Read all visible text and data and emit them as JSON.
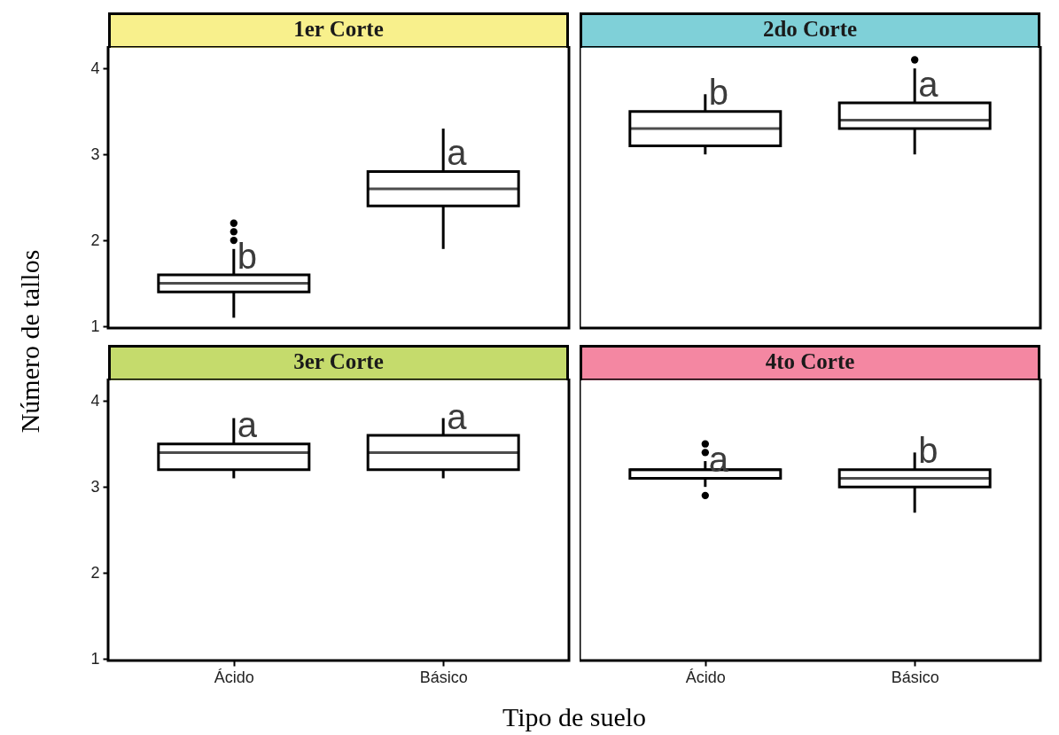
{
  "chart_data": [
    {
      "type": "box",
      "title": "1er Corte",
      "ylabel": "Número de tallos",
      "categories": [
        "Ácido",
        "Básico"
      ],
      "ylim": [
        0.98,
        4.26
      ],
      "yticks": [
        1,
        2,
        3,
        4
      ],
      "tick_labels": "y",
      "grid": false,
      "boxes": [
        {
          "low": 1.1,
          "q1": 1.4,
          "median": 1.5,
          "q3": 1.6,
          "high": 1.9,
          "outliers": [
            2.0,
            2.1,
            2.2
          ]
        },
        {
          "low": 1.9,
          "q1": 2.4,
          "median": 2.6,
          "q3": 2.8,
          "high": 3.3
        }
      ],
      "annotations": [
        {
          "text": "b",
          "x": "Ácido",
          "y": 1.8
        },
        {
          "text": "a",
          "x": "Básico",
          "y": 3.0
        }
      ]
    },
    {
      "type": "box",
      "title": "2do Corte",
      "categories": [
        "Ácido",
        "Básico"
      ],
      "ylim": [
        0.98,
        4.26
      ],
      "yticks": [
        1,
        2,
        3,
        4
      ],
      "tick_labels": false,
      "grid": false,
      "boxes": [
        {
          "low": 3.0,
          "q1": 3.1,
          "median": 3.3,
          "q3": 3.5,
          "high": 3.7
        },
        {
          "low": 3.0,
          "q1": 3.3,
          "median": 3.4,
          "q3": 3.6,
          "high": 4.0,
          "outliers": [
            4.1
          ]
        }
      ],
      "annotations": [
        {
          "text": "b",
          "x": "Ácido",
          "y": 3.7
        },
        {
          "text": "a",
          "x": "Básico",
          "y": 3.8
        }
      ]
    },
    {
      "type": "box",
      "title": "3er Corte",
      "xlabel": "Tipo de suelo",
      "categories": [
        "Ácido",
        "Básico"
      ],
      "ylim": [
        0.98,
        4.26
      ],
      "yticks": [
        1,
        2,
        3,
        4
      ],
      "grid": false,
      "boxes": [
        {
          "low": 3.1,
          "q1": 3.2,
          "median": 3.4,
          "q3": 3.5,
          "high": 3.8
        },
        {
          "low": 3.1,
          "q1": 3.2,
          "median": 3.4,
          "q3": 3.6,
          "high": 3.8
        }
      ],
      "annotations": [
        {
          "text": "a",
          "x": "Ácido",
          "y": 3.7
        },
        {
          "text": "a",
          "x": "Básico",
          "y": 3.8
        }
      ]
    },
    {
      "type": "box",
      "title": "4to Corte",
      "categories": [
        "Ácido",
        "Básico"
      ],
      "ylim": [
        0.98,
        4.26
      ],
      "yticks": [
        1,
        2,
        3,
        4
      ],
      "tick_labels": "x",
      "grid": false,
      "boxes": [
        {
          "low": 3.0,
          "q1": 3.1,
          "median": 3.2,
          "q3": 3.2,
          "high": 3.3,
          "outliers": [
            2.9,
            3.4,
            3.5
          ]
        },
        {
          "low": 2.7,
          "q1": 3.0,
          "median": 3.1,
          "q3": 3.2,
          "high": 3.4
        }
      ],
      "annotations": [
        {
          "text": "a",
          "x": "Ácido",
          "y": 3.3
        },
        {
          "text": "b",
          "x": "Básico",
          "y": 3.4
        }
      ]
    }
  ]
}
